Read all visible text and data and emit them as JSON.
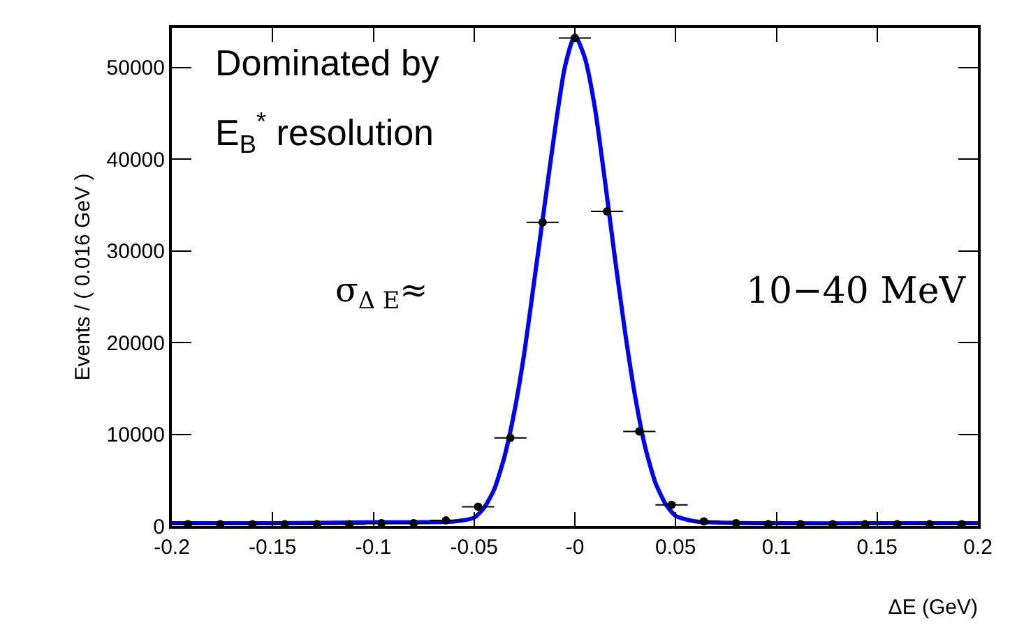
{
  "chart_data": {
    "type": "scatter",
    "xlabel": "ΔE (GeV)",
    "ylabel": "Events / ( 0.016 GeV )",
    "annotations": [
      "Dominated by",
      "E$_{B}$$^{*}$ resolution",
      "σ$_{Δ E}$≈",
      "10−40 MeV"
    ],
    "series": [
      {
        "color": "#000000",
        "marker": "circle",
        "x": [
          -0.192,
          -0.176,
          -0.16,
          -0.144,
          -0.128,
          -0.112,
          -0.096,
          -0.08,
          -0.064,
          -0.048,
          -0.032,
          -0.016,
          0,
          0.016,
          0.032,
          0.048,
          0.064,
          0.08,
          0.096,
          0.112,
          0.128,
          0.144,
          0.16,
          0.176,
          0.192
        ],
        "values": [
          200,
          200,
          200,
          200,
          200,
          200,
          300,
          300,
          600,
          2100,
          9600,
          33100,
          53200,
          34300,
          10300,
          2300,
          500,
          300,
          200,
          200,
          200,
          200,
          200,
          200,
          200
        ],
        "xerrors": [
          0.008,
          0.008,
          0.008,
          0.008,
          0.008,
          0.008,
          0.008,
          0.008,
          0.008,
          0.008,
          0.008,
          0.008,
          0.008,
          0.008,
          0.008,
          0.008,
          0.008,
          0.008,
          0.008,
          0.008,
          0.008,
          0.008,
          0.008,
          0.008,
          0.008
        ]
      },
      {
        "type": "line",
        "color": "#0000ff",
        "marker": "none",
        "line_style": "solid",
        "x": [
          -0.2,
          -0.15,
          -0.1,
          -0.06,
          -0.05,
          -0.045,
          -0.04,
          -0.035,
          -0.03,
          -0.025,
          -0.02,
          -0.015,
          -0.01,
          -0.005,
          0,
          0.005,
          0.01,
          0.015,
          0.02,
          0.025,
          0.03,
          0.035,
          0.04,
          0.045,
          0.05,
          0.06,
          0.1,
          0.15,
          0.2
        ],
        "values": [
          300,
          300,
          400,
          500,
          900,
          2000,
          4000,
          7500,
          12500,
          19000,
          27000,
          35000,
          43000,
          50000,
          53500,
          51000,
          45500,
          37500,
          29000,
          21000,
          14000,
          8500,
          4700,
          2400,
          1100,
          500,
          300,
          300,
          300
        ]
      }
    ],
    "xlim": [
      -0.2,
      0.2
    ],
    "xticks": [
      -0.2,
      -0.15,
      -0.1,
      -0.05,
      {
        "value": 0,
        "label": "-0"
      },
      0.05,
      0.1,
      0.15,
      0.2
    ],
    "ylim": [
      0,
      54300
    ],
    "yticks": [
      0,
      10000,
      20000,
      30000,
      40000,
      50000
    ],
    "grid": false
  }
}
